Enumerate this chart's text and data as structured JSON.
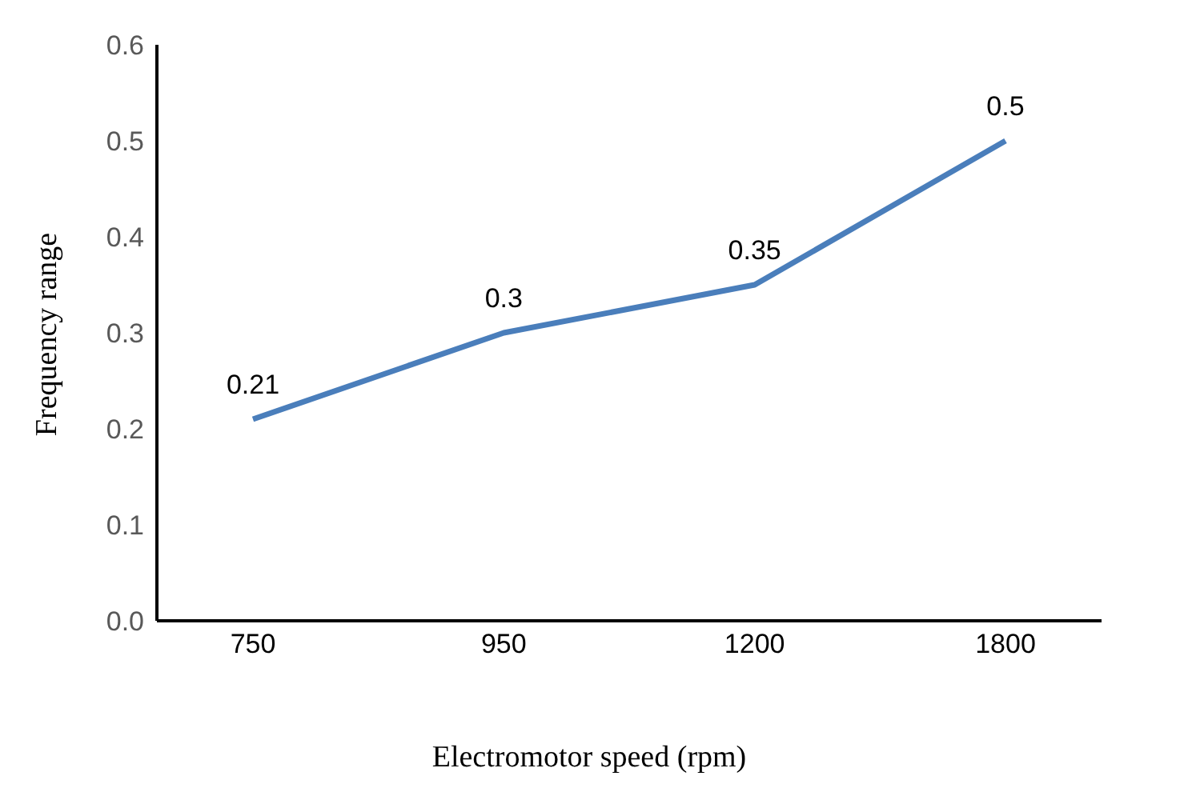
{
  "chart_data": {
    "type": "line",
    "xlabel": "Electromotor speed (rpm)",
    "ylabel": "Frequency range",
    "categories": [
      "750",
      "950",
      "1200",
      "1800"
    ],
    "series": [
      {
        "color": "#4a7ebb",
        "values": [
          0.21,
          0.3,
          0.35,
          0.5
        ]
      }
    ],
    "ylim": [
      0,
      0.6
    ],
    "yticks": [
      {
        "value": 0,
        "label": "0.0"
      },
      0.1,
      0.2,
      0.3,
      0.4,
      0.5,
      0.6
    ],
    "data_labels": true,
    "marker": "none",
    "line_style": "solid",
    "grid": false,
    "legend": false
  }
}
